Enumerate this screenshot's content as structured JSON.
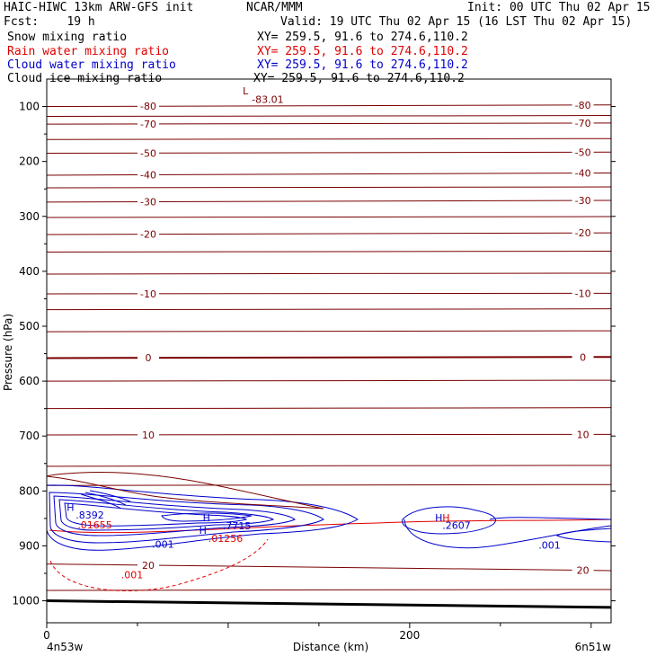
{
  "header": {
    "model": "HAIC-HIWC 13km ARW-GFS init",
    "org": "NCAR/MMM",
    "init": "Init: 00 UTC Thu 02 Apr 15",
    "fcst": "Fcst:    19 h",
    "valid": "Valid: 19 UTC Thu 02 Apr 15 (16 LST Thu 02 Apr 15)"
  },
  "fields": [
    {
      "name": "Snow mixing ratio",
      "color": "#000000",
      "xy": "XY= 259.5, 91.6 to 274.6,110.2"
    },
    {
      "name": "Rain water mixing ratio",
      "color": "#e00000",
      "xy": "XY= 259.5, 91.6 to 274.6,110.2"
    },
    {
      "name": "Cloud water mixing ratio",
      "color": "#0000cc",
      "xy": "XY= 259.5, 91.6 to 274.6,110.2"
    },
    {
      "name": "Cloud ice mixing ratio",
      "color": "#000000",
      "xy": "XY= 259.5, 91.6 to 274.6,110.2"
    }
  ],
  "chart_data": {
    "type": "line",
    "title": "",
    "xlabel": "Distance (km)",
    "ylabel": "Pressure (hPa)",
    "xlim": [
      0,
      311
    ],
    "ylim": [
      1040,
      50
    ],
    "x_ticks": [
      0,
      200
    ],
    "y_ticks": [
      100,
      200,
      300,
      400,
      500,
      600,
      700,
      800,
      900,
      1000
    ],
    "endpoints": {
      "left": "4n53w",
      "right": "6n51w"
    },
    "temperature_contours": [
      {
        "label": "-80",
        "left_p": 100,
        "right_p": 97
      },
      {
        "label": "-70",
        "left_p": 132,
        "right_p": 130
      },
      {
        "label": "-50",
        "left_p": 185,
        "right_p": 183
      },
      {
        "label": "-40",
        "left_p": 225,
        "right_p": 221
      },
      {
        "label": "-30",
        "left_p": 274,
        "right_p": 271
      },
      {
        "label": "-20",
        "left_p": 333,
        "right_p": 330
      },
      {
        "label": "-10",
        "left_p": 441,
        "right_p": 440
      },
      {
        "label": "0",
        "left_p": 558,
        "right_p": 556
      },
      {
        "label": "10",
        "left_p": 698,
        "right_p": 697
      },
      {
        "label": "20",
        "left_p": 933,
        "right_p": 945
      }
    ],
    "annotations": [
      {
        "text": "L",
        "x": 108,
        "p": 78,
        "color": "#7a0000"
      },
      {
        "text": "-83.01",
        "x": 113,
        "p": 93,
        "color": "#7a0000"
      },
      {
        "text": "H",
        "x": 11,
        "p": 836,
        "color": "#0000cc"
      },
      {
        "text": ".8392",
        "x": 16,
        "p": 850,
        "color": "#0000cc"
      },
      {
        "text": ".01655",
        "x": 17,
        "p": 868,
        "color": "#e00000"
      },
      {
        "text": "H",
        "x": 86,
        "p": 855,
        "color": "#0000cc"
      },
      {
        "text": "H",
        "x": 84,
        "p": 878,
        "color": "#0000cc"
      },
      {
        "text": ".7715",
        "x": 97,
        "p": 870,
        "color": "#0000cc"
      },
      {
        "text": ".01256",
        "x": 89,
        "p": 893,
        "color": "#e00000"
      },
      {
        "text": "H",
        "x": 214,
        "p": 855,
        "color": "#0000cc"
      },
      {
        "text": "H",
        "x": 218,
        "p": 855,
        "color": "#e00000"
      },
      {
        "text": ".2607",
        "x": 218,
        "p": 869,
        "color": "#0000cc"
      },
      {
        "text": ".001",
        "x": 58,
        "p": 903,
        "color": "#0000cc"
      },
      {
        "text": ".001",
        "x": 271,
        "p": 905,
        "color": "#0000cc"
      },
      {
        "text": ".001",
        "x": 41,
        "p": 959,
        "color": "#e00000"
      }
    ]
  }
}
